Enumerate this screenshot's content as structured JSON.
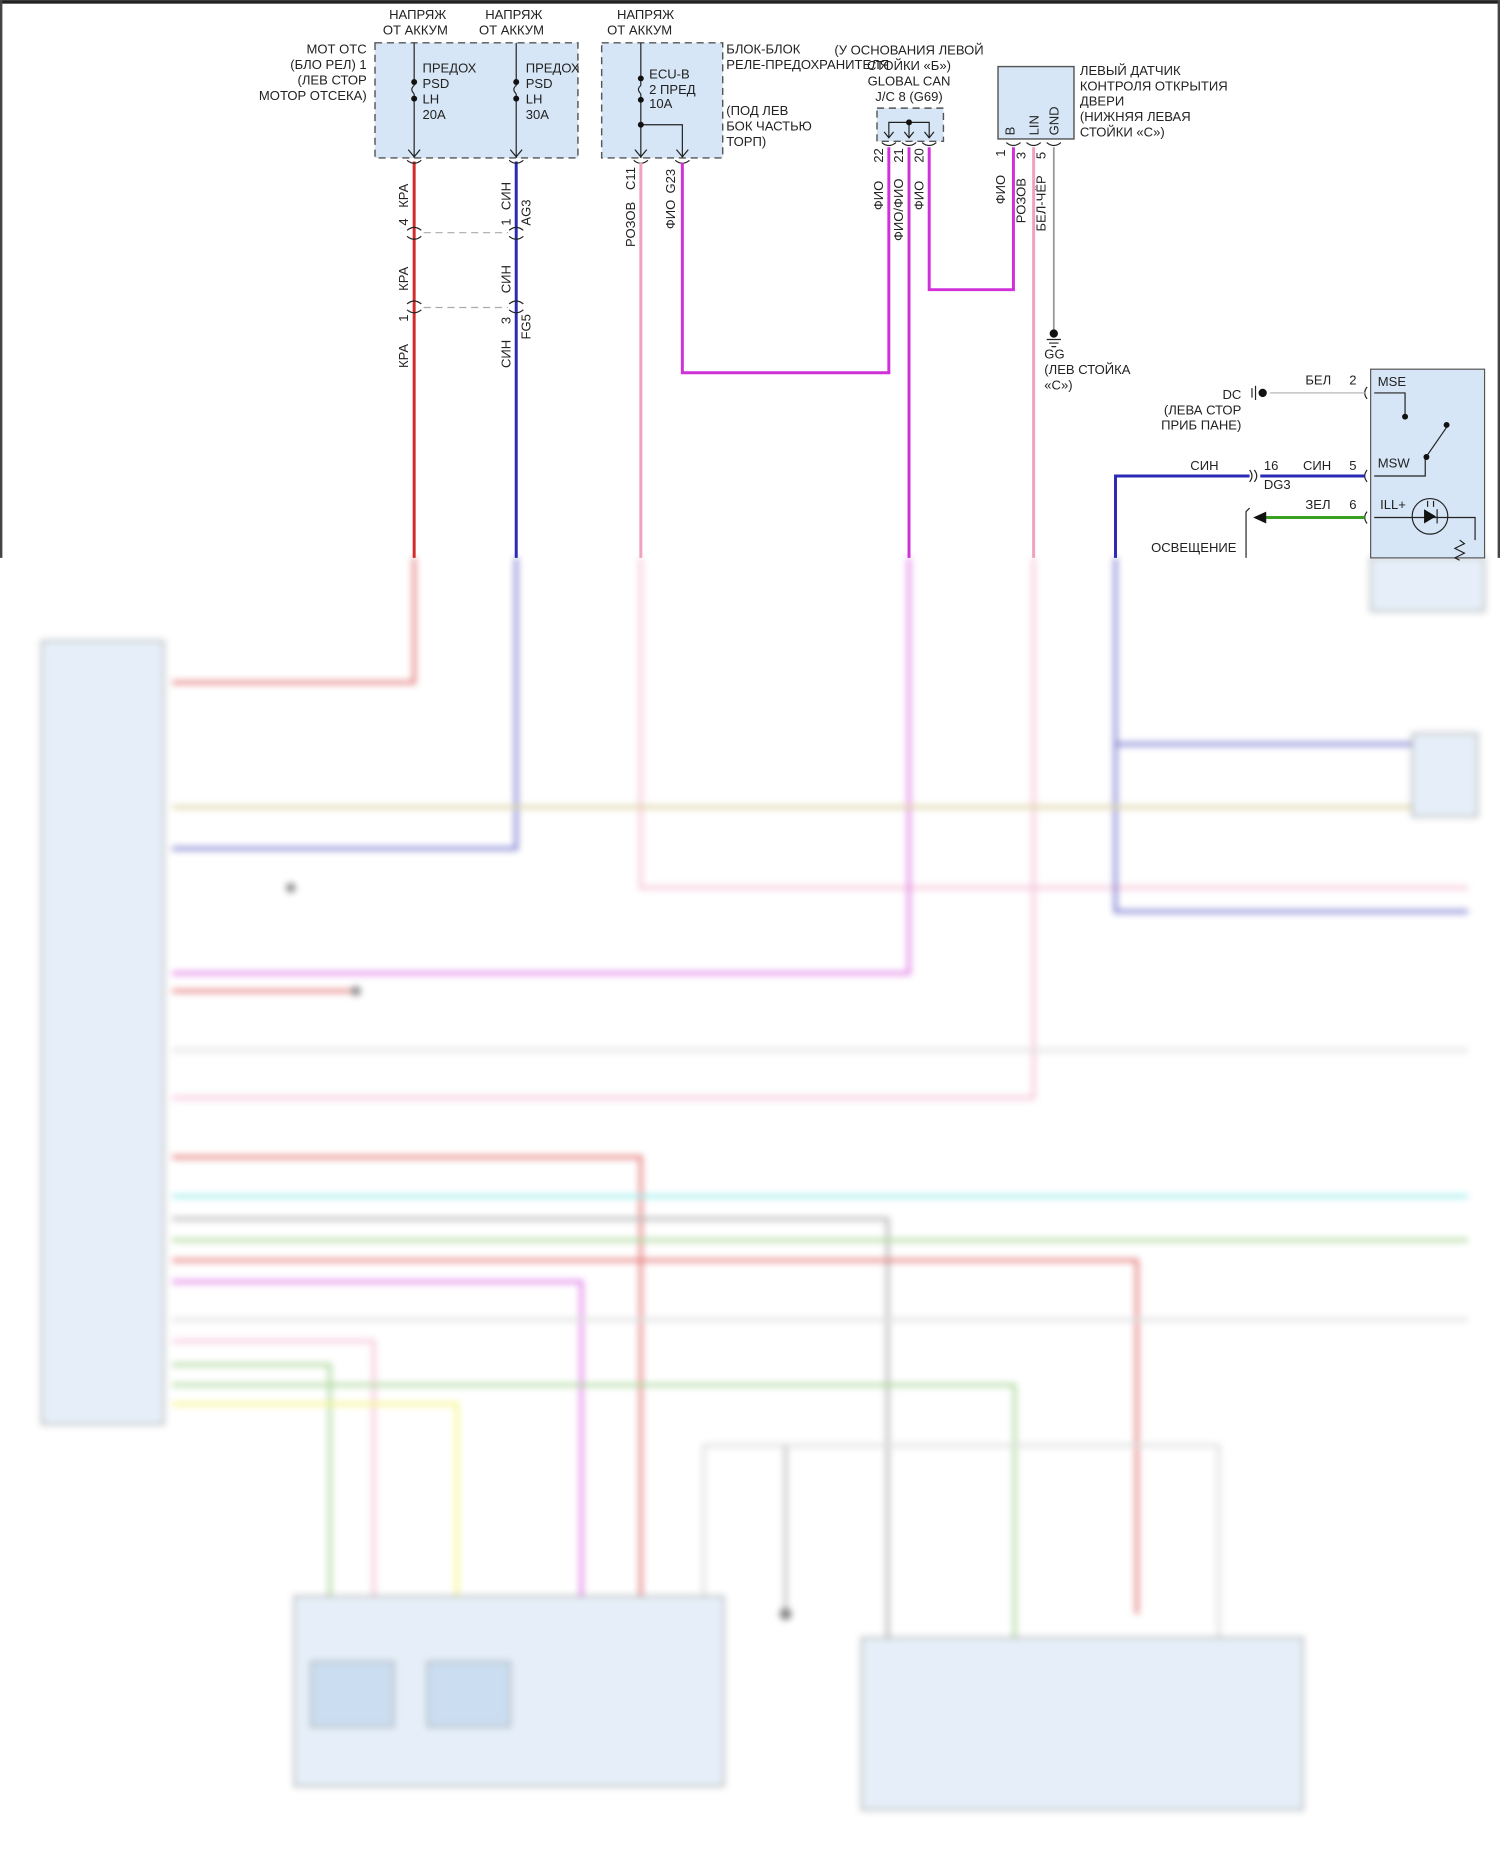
{
  "colors": {
    "red": "#d42a2a",
    "blue": "#2a2ab4",
    "pink": "#f0a0c0",
    "magenta": "#d030d8",
    "gray": "#999999",
    "green": "#3aa020",
    "white": "#d8d8d8",
    "box": "#d6e6f6"
  },
  "battery_label": [
    "НАПРЯЖ",
    "ОТ АККУМ"
  ],
  "engine_relay_block": {
    "label": [
      "МОТ ОТС",
      "(БЛО РЕЛ) 1",
      "(ЛЕВ СТОР",
      "МОТОР ОТСЕКА)"
    ],
    "fuse1": [
      "ПРЕДОХ",
      "PSD",
      "LH",
      "20A"
    ],
    "fuse2": [
      "ПРЕДОХ",
      "PSD",
      "LH",
      "30A"
    ]
  },
  "instrument_block": {
    "label": [
      "БЛОК-БЛОК",
      "РЕЛЕ-ПРЕДОХРАНИТЕЛЯ"
    ],
    "location": [
      "(ПОД ЛЕВ",
      "БОК ЧАСТЬЮ",
      "ТОРП)"
    ],
    "fuse": [
      "ECU-B",
      "2 ПРЕД",
      "10A"
    ],
    "pins": [
      "C11",
      "G23"
    ]
  },
  "junction": {
    "label": [
      "(У ОСНОВАНИЯ ЛЕВОЙ",
      "СТОЙКИ «Б»)",
      "GLOBAL CAN",
      "J/C 8 (G69)"
    ],
    "pins": [
      "22",
      "21",
      "20"
    ],
    "wires": [
      "ФИО",
      "ФИО/ФИО",
      "ФИО"
    ]
  },
  "door_sensor": {
    "label": [
      "ЛЕВЫЙ ДАТЧИК",
      "КОНТРОЛЯ ОТКРЫТИЯ",
      "ДВЕРИ",
      "(НИЖНЯЯ ЛЕВАЯ",
      "СТОЙКИ «С»)"
    ],
    "terminals": [
      "B",
      "LIN",
      "GND"
    ],
    "pins": [
      "1",
      "3",
      "5"
    ],
    "wires": [
      "ФИО",
      "РОЗОВ",
      "БЕЛ-ЧЁР"
    ]
  },
  "ground_gg": [
    "GG",
    "(ЛЕВ СТОЙКА",
    "«С»)"
  ],
  "wires": {
    "red": "КРА",
    "blue": "СИН",
    "pink": "РОЗОВ",
    "magenta": "ФИО"
  },
  "connectors": {
    "red_pins": [
      "4",
      "1"
    ],
    "blue_pins": [
      "1",
      "3"
    ],
    "ag3": "AG3",
    "fg5": "FG5"
  },
  "switch": {
    "terminals": [
      "MSE",
      "MSW",
      "ILL+"
    ],
    "pins": [
      "2",
      "5",
      "6"
    ],
    "wires": [
      "БЕЛ",
      "СИН",
      "ЗЕЛ"
    ],
    "dg3_pin": "16",
    "dg3": "DG3",
    "dg3_wire": "СИН",
    "ground": "DC",
    "ground_location": [
      "(ЛЕВА СТОР",
      "ПРИБ ПАНЕ)"
    ],
    "illumination": "ОСВЕЩЕНИЕ"
  }
}
